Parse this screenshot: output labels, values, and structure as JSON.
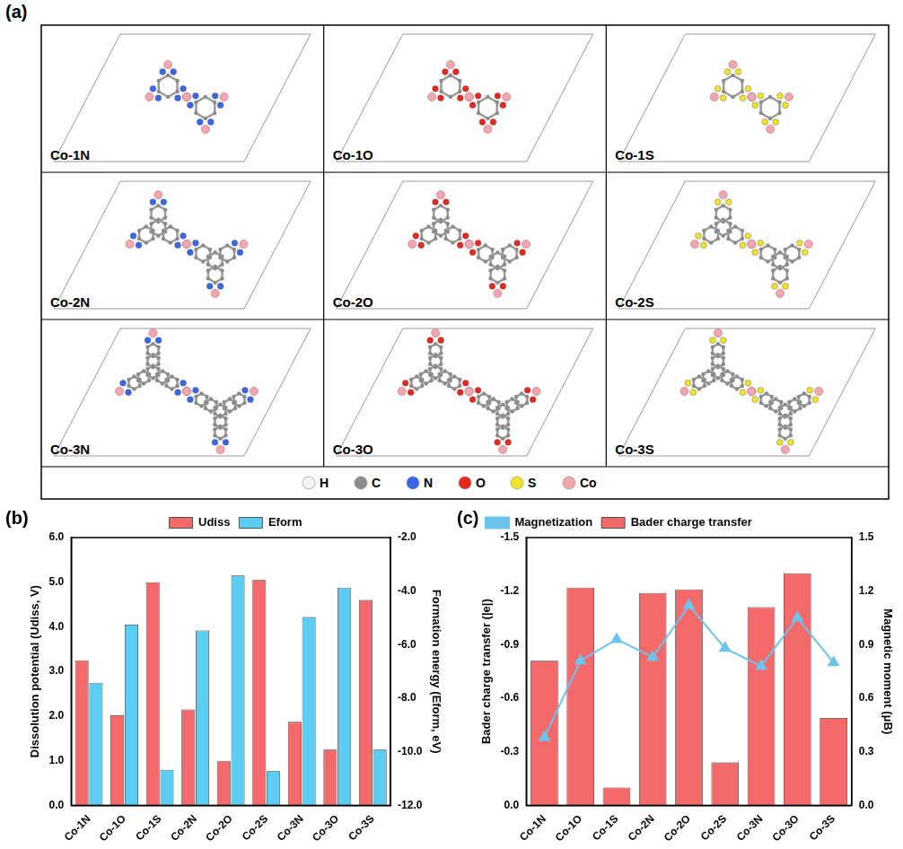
{
  "panel_a": {
    "label": "(a)",
    "cells": [
      {
        "label": "Co-1N"
      },
      {
        "label": "Co-1O"
      },
      {
        "label": "Co-1S"
      },
      {
        "label": "Co-2N"
      },
      {
        "label": "Co-2O"
      },
      {
        "label": "Co-2S"
      },
      {
        "label": "Co-3N"
      },
      {
        "label": "Co-3O"
      },
      {
        "label": "Co-3S"
      }
    ],
    "legend": [
      {
        "symbol": "H",
        "color": "#f4f4f4"
      },
      {
        "symbol": "C",
        "color": "#8c8c8c"
      },
      {
        "symbol": "N",
        "color": "#3a66e8"
      },
      {
        "symbol": "O",
        "color": "#e8281e"
      },
      {
        "symbol": "S",
        "color": "#f2e22a"
      },
      {
        "symbol": "Co",
        "color": "#f0a8b0"
      }
    ]
  },
  "chart_data": [
    {
      "type": "bar",
      "panel_label": "(b)",
      "categories": [
        "Co-1N",
        "Co-1O",
        "Co-1S",
        "Co-2N",
        "Co-2O",
        "Co-2S",
        "Co-3N",
        "Co-3O",
        "Co-3S"
      ],
      "series": [
        {
          "name": "Udiss",
          "type": "bar",
          "color": "#f46a6a",
          "values": [
            3.25,
            2.02,
            5.0,
            2.15,
            1.0,
            5.05,
            1.87,
            1.25,
            4.6
          ]
        },
        {
          "name": "Eform",
          "type": "bar",
          "color": "#5ccdf2",
          "axis": "y2",
          "values": [
            -7.42,
            -5.25,
            -10.67,
            -5.47,
            -3.42,
            -10.72,
            -4.97,
            -3.87,
            -9.92
          ]
        }
      ],
      "y_label": "Dissolution potential (Udiss, V)",
      "y2_label": "Formation energy (Eform, eV)",
      "ylim": [
        0,
        6
      ],
      "yticks": [
        {
          "value": 0,
          "label": "0.0"
        },
        {
          "value": 1,
          "label": "1.0"
        },
        {
          "value": 2,
          "label": "2.0"
        },
        {
          "value": 3,
          "label": "3.0"
        },
        {
          "value": 4,
          "label": "4.0"
        },
        {
          "value": 5,
          "label": "5.0"
        },
        {
          "value": 6,
          "label": "6.0"
        }
      ],
      "y2lim": [
        -12,
        -2
      ],
      "y2ticks": [
        {
          "value": -12,
          "label": "-12.0"
        },
        {
          "value": -10,
          "label": "-10.0"
        },
        {
          "value": -8,
          "label": "-8.0"
        },
        {
          "value": -6,
          "label": "-6.0"
        },
        {
          "value": -4,
          "label": "-4.0"
        },
        {
          "value": -2,
          "label": "-2.0"
        }
      ],
      "grid": false,
      "legend": "top"
    },
    {
      "type": "bar",
      "panel_label": "(c)",
      "categories": [
        "Co-1N",
        "Co-1O",
        "Co-1S",
        "Co-2N",
        "Co-2O",
        "Co-2S",
        "Co-3N",
        "Co-3O",
        "Co-3S"
      ],
      "series": [
        {
          "name": "Bader charge transfer",
          "type": "bar",
          "color": "#f46a6a",
          "values": [
            -0.81,
            -1.22,
            -0.1,
            -1.19,
            -1.21,
            -0.24,
            -1.11,
            -1.3,
            -0.49
          ]
        },
        {
          "name": "Magnetization",
          "type": "line",
          "color": "#6cc4ec",
          "marker": "triangle",
          "line_style": "solid",
          "axis": "y2",
          "values": [
            0.38,
            0.81,
            0.93,
            0.83,
            1.12,
            0.88,
            0.78,
            1.05,
            0.8
          ]
        }
      ],
      "y_label": "Bader charge transfer (|e|)",
      "y2_label": "Magnetic moment (μB)",
      "ylim": [
        0,
        -1.5
      ],
      "yticks": [
        {
          "value": 0,
          "label": "0.0"
        },
        -0.3,
        -0.6,
        -0.9,
        -1.2,
        -1.5
      ],
      "y2lim": [
        0,
        1.5
      ],
      "y2ticks": [
        {
          "value": 0,
          "label": "0.0"
        },
        0.3,
        0.6,
        0.9,
        1.2,
        1.5
      ],
      "grid": false,
      "legend": "upper left"
    }
  ]
}
